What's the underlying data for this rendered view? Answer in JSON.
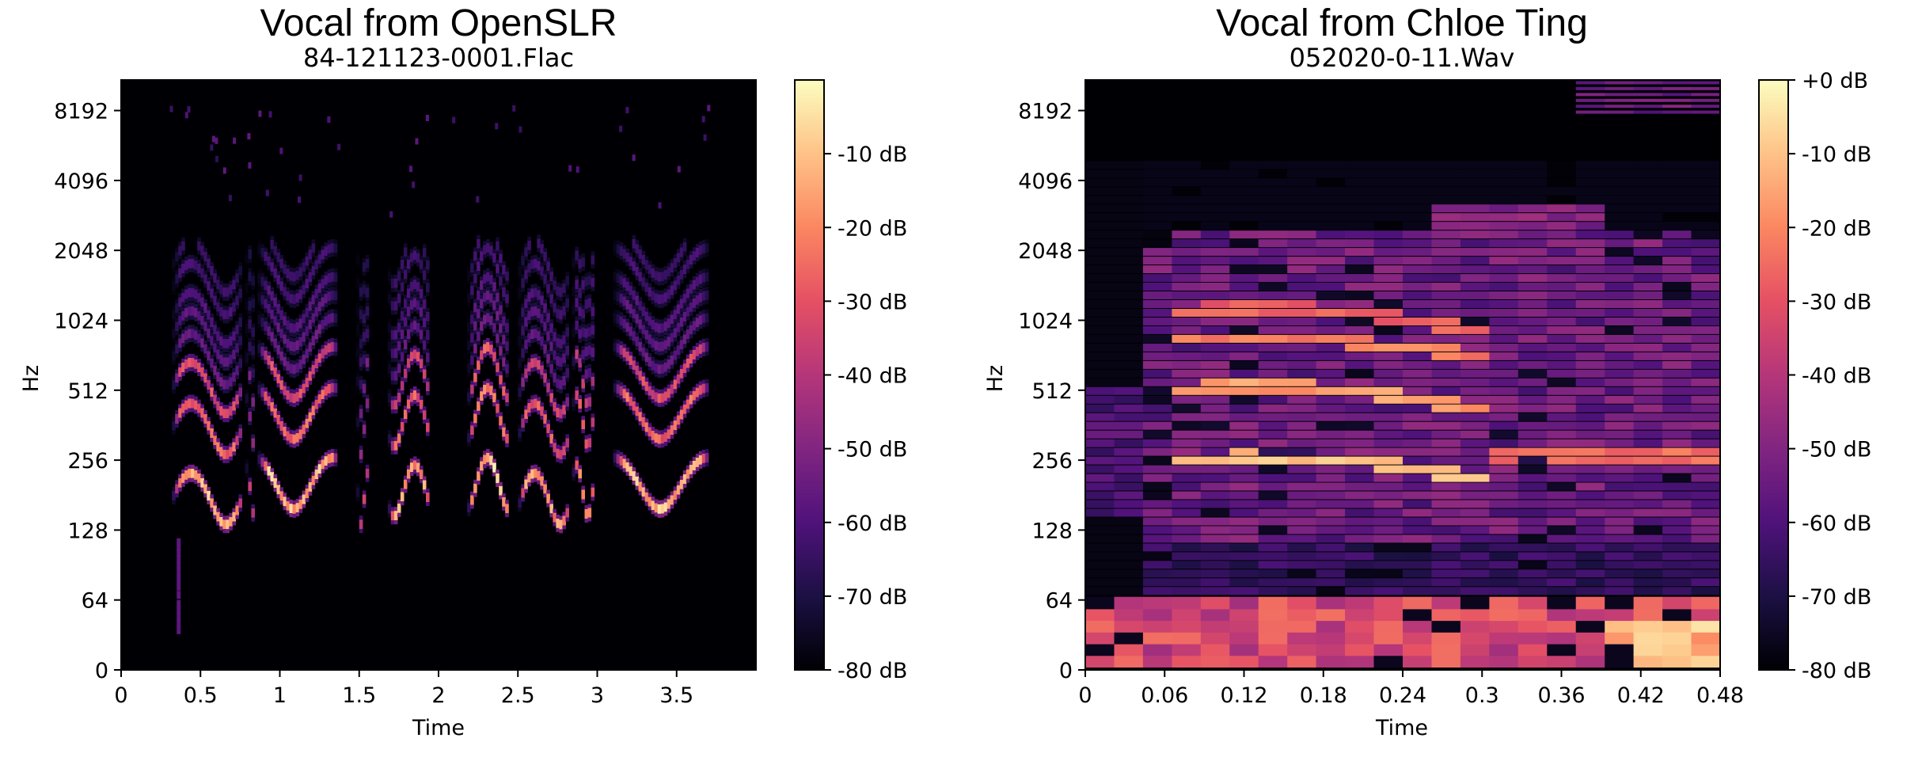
{
  "chart_data": [
    {
      "type": "heatmap",
      "title": "Vocal from OpenSLR",
      "subtitle": "84-121123-0001.Flac",
      "xlabel": "Time",
      "ylabel": "Hz",
      "x_ticks": [
        "0",
        "0.5",
        "1",
        "1.5",
        "2",
        "2.5",
        "3",
        "3.5"
      ],
      "x_tick_values": [
        0,
        0.5,
        1,
        1.5,
        2,
        2.5,
        3,
        3.5
      ],
      "xlim": [
        0,
        4.0
      ],
      "y_scale": "log2",
      "y_ticks": [
        "0",
        "64",
        "128",
        "256",
        "512",
        "1024",
        "2048",
        "4096",
        "8192"
      ],
      "colormap": "magma",
      "colorbar_ticks": [
        "-10 dB",
        "-20 dB",
        "-30 dB",
        "-40 dB",
        "-50 dB",
        "-60 dB",
        "-70 dB",
        "-80 dB"
      ],
      "colorbar_range_db": [
        -80,
        0
      ],
      "segments": [
        {
          "start": 0.32,
          "end": 0.75,
          "level": 0.95
        },
        {
          "start": 0.78,
          "end": 0.85,
          "level": 0.55
        },
        {
          "start": 0.86,
          "end": 1.35,
          "level": 0.95
        },
        {
          "start": 1.48,
          "end": 1.55,
          "level": 0.6
        },
        {
          "start": 1.68,
          "end": 1.95,
          "level": 0.9
        },
        {
          "start": 2.18,
          "end": 2.45,
          "level": 1.0
        },
        {
          "start": 2.5,
          "end": 2.82,
          "level": 0.9
        },
        {
          "start": 2.84,
          "end": 2.98,
          "level": 0.85
        },
        {
          "start": 3.1,
          "end": 3.7,
          "level": 0.95
        }
      ]
    },
    {
      "type": "heatmap",
      "title": "Vocal from Chloe Ting",
      "subtitle": "052020-0-11.Wav",
      "xlabel": "Time",
      "ylabel": "Hz",
      "x_ticks": [
        "0",
        "0.06",
        "0.12",
        "0.18",
        "0.24",
        "0.3",
        "0.36",
        "0.42",
        "0.48"
      ],
      "x_tick_values": [
        0,
        0.06,
        0.12,
        0.18,
        0.24,
        0.3,
        0.36,
        0.42,
        0.48
      ],
      "xlim": [
        0,
        0.48
      ],
      "y_scale": "log2",
      "y_ticks": [
        "0",
        "64",
        "128",
        "256",
        "512",
        "1024",
        "2048",
        "4096",
        "8192"
      ],
      "colormap": "magma",
      "colorbar_ticks": [
        "+0 dB",
        "-10 dB",
        "-20 dB",
        "-30 dB",
        "-40 dB",
        "-50 dB",
        "-60 dB",
        "-70 dB",
        "-80 dB"
      ],
      "colorbar_range_db": [
        -80,
        0
      ]
    }
  ]
}
